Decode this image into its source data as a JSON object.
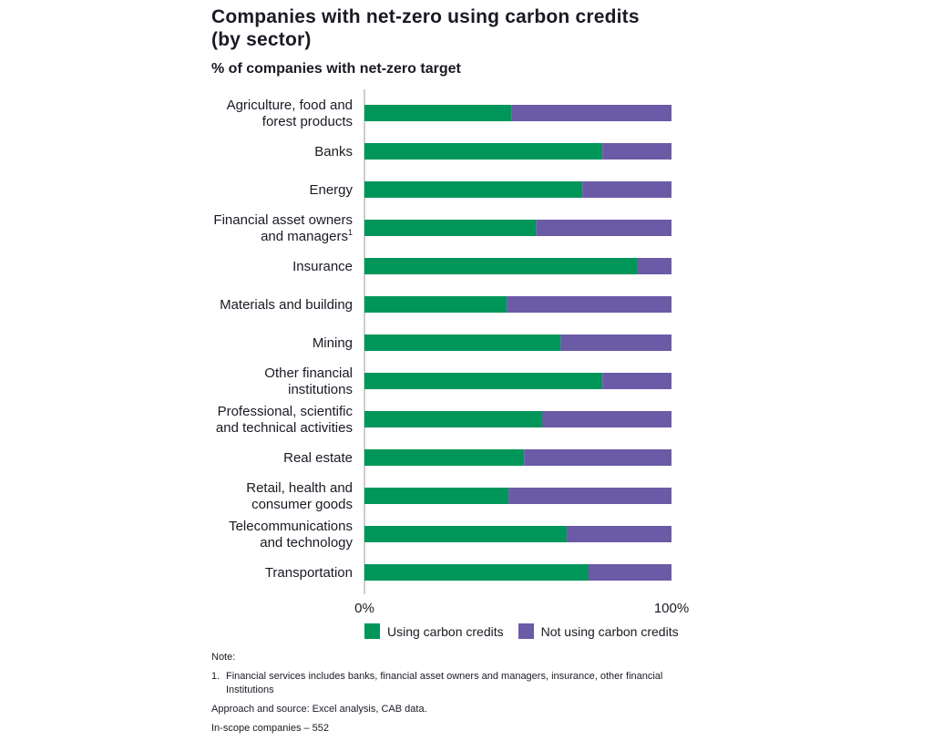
{
  "title_line1": "Companies with net-zero using carbon credits",
  "title_line2": "(by sector)",
  "subtitle": "% of companies with net-zero target",
  "colors": {
    "using": "#00965a",
    "not_using": "#6b5aa6",
    "axis": "#999999"
  },
  "chart_data": {
    "type": "bar",
    "orientation": "horizontal",
    "stacked": true,
    "categories": [
      [
        "Agriculture, food and",
        "forest products"
      ],
      [
        "Banks"
      ],
      [
        "Energy"
      ],
      [
        "Financial asset owners",
        "and managers"
      ],
      [
        "Insurance"
      ],
      [
        "Materials and building"
      ],
      [
        "Mining"
      ],
      [
        "Other financial",
        "institutions"
      ],
      [
        "Professional, scientific",
        "and technical activities"
      ],
      [
        "Real estate"
      ],
      [
        "Retail, health and",
        "consumer goods"
      ],
      [
        "Telecommunications",
        "and technology"
      ],
      [
        "Transportation"
      ]
    ],
    "category_superscripts": [
      "",
      "",
      "",
      "1",
      "",
      "",
      "",
      "",
      "",
      "",
      "",
      "",
      ""
    ],
    "series": [
      {
        "name": "Using carbon credits",
        "values": [
          48,
          77.5,
          71,
          56,
          89,
          46.5,
          64,
          77.5,
          58,
          52,
          47,
          66,
          73
        ]
      },
      {
        "name": "Not using carbon credits",
        "values": [
          52,
          22.5,
          29,
          44,
          11,
          53.5,
          36,
          22.5,
          42,
          48,
          53,
          34,
          27
        ]
      }
    ],
    "xlim": [
      0,
      100
    ],
    "x_ticks": [
      "0%",
      "100%"
    ],
    "legend_position": "bottom"
  },
  "legend": {
    "using_label": "Using carbon credits",
    "not_using_label": "Not using carbon credits"
  },
  "notes": {
    "heading": "Note:",
    "item_number": "1.",
    "item_text": "Financial services includes banks, financial asset owners and managers, insurance, other financial Institutions",
    "source": "Approach and source: Excel analysis, CAB data.",
    "scope": "In-scope companies – 552"
  }
}
